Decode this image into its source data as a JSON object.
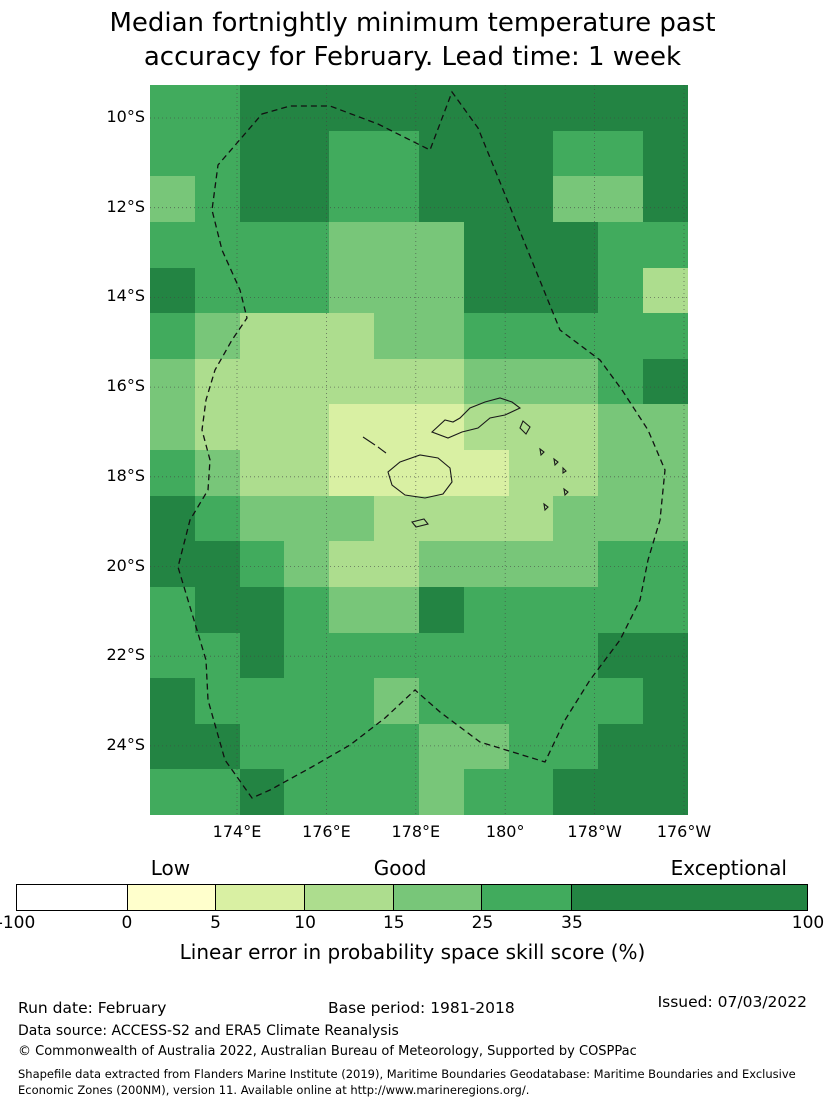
{
  "title": {
    "line1": "Median fortnightly minimum temperature past",
    "line2": "accuracy for February. Lead time: 1 week"
  },
  "chart_data": {
    "type": "heatmap",
    "title": "Median fortnightly minimum temperature past accuracy for February. Lead time: 1 week",
    "region": "Fiji EEZ",
    "xlabel": "",
    "ylabel": "",
    "x_ticks": [
      "174°E",
      "176°E",
      "178°E",
      "180°",
      "178°W",
      "176°W"
    ],
    "y_ticks": [
      "10°S",
      "12°S",
      "14°S",
      "16°S",
      "18°S",
      "20°S",
      "22°S",
      "24°S"
    ],
    "lon_start_deg_east": 172,
    "lon_step_deg": 1,
    "lat_start_deg": -9.5,
    "lat_step_deg": -1,
    "grid_note": "16 rows (north to south, ~9.5S to 25.5S) x 12 cols (west to east, ~172E to 176W); values are LEPS skill score % bin midpoints estimated from cell colors",
    "grid_values": [
      [
        30,
        30,
        40,
        40,
        40,
        40,
        40,
        40,
        40,
        40,
        40,
        40
      ],
      [
        30,
        30,
        40,
        40,
        30,
        30,
        40,
        40,
        40,
        30,
        30,
        40
      ],
      [
        20,
        30,
        40,
        40,
        30,
        30,
        40,
        40,
        40,
        20,
        20,
        40
      ],
      [
        30,
        30,
        30,
        30,
        20,
        20,
        20,
        40,
        40,
        40,
        30,
        30
      ],
      [
        40,
        30,
        30,
        30,
        20,
        20,
        20,
        40,
        40,
        40,
        30,
        12
      ],
      [
        30,
        20,
        12,
        12,
        12,
        20,
        20,
        30,
        30,
        30,
        30,
        30
      ],
      [
        20,
        12,
        12,
        12,
        12,
        12,
        12,
        20,
        20,
        20,
        30,
        40
      ],
      [
        20,
        12,
        12,
        12,
        7,
        7,
        7,
        12,
        12,
        12,
        20,
        20
      ],
      [
        30,
        20,
        12,
        12,
        7,
        7,
        7,
        7,
        12,
        12,
        20,
        20
      ],
      [
        40,
        30,
        20,
        20,
        20,
        12,
        12,
        12,
        12,
        20,
        20,
        20
      ],
      [
        40,
        40,
        30,
        20,
        12,
        12,
        20,
        20,
        20,
        20,
        30,
        30
      ],
      [
        30,
        40,
        40,
        30,
        20,
        20,
        40,
        30,
        30,
        30,
        30,
        30
      ],
      [
        30,
        30,
        40,
        30,
        30,
        30,
        30,
        30,
        30,
        30,
        40,
        40
      ],
      [
        40,
        30,
        30,
        30,
        30,
        20,
        30,
        30,
        30,
        30,
        30,
        40
      ],
      [
        40,
        40,
        30,
        30,
        30,
        30,
        20,
        20,
        30,
        30,
        40,
        40
      ],
      [
        30,
        30,
        40,
        30,
        30,
        30,
        20,
        30,
        30,
        40,
        40,
        40
      ]
    ],
    "colorbar": {
      "caption": "Linear error in probability space skill score (%)",
      "quality_labels": [
        {
          "text": "Low",
          "pos_pct": 19.5
        },
        {
          "text": "Good",
          "pos_pct": 48.5
        },
        {
          "text": "Exceptional",
          "pos_pct": 90.0
        }
      ],
      "thresholds": [
        -100,
        0,
        5,
        10,
        15,
        25,
        35,
        100
      ],
      "tick_labels": [
        "-100",
        "0",
        "5",
        "10",
        "15",
        "25",
        "35",
        "100"
      ],
      "tick_positions_pct": [
        0,
        14.0,
        25.2,
        36.5,
        47.7,
        58.9,
        70.2,
        100
      ],
      "segment_widths_pct": [
        14.0,
        11.2,
        11.3,
        11.2,
        11.2,
        11.3,
        29.8
      ],
      "colors": [
        "#ffffff",
        "#ffffcc",
        "#d9f0a3",
        "#addd8e",
        "#78c679",
        "#41ab5d",
        "#238443"
      ]
    }
  },
  "footer": {
    "run_date": "Run date: February",
    "base_period": "Base period: 1981-2018",
    "issued": "Issued: 07/03/2022",
    "data_source": "Data source: ACCESS-S2 and ERA5 Climate Reanalysis",
    "copyright": "© Commonwealth of Australia 2022, Australian Bureau of Meteorology, Supported by COSPPac",
    "shapefile_note": "Shapefile data extracted from Flanders Marine Institute (2019), Maritime Boundaries Geodatabase: Maritime Boundaries and Exclusive Economic Zones (200NM), version 11. Available online at http://www.marineregions.org/."
  }
}
